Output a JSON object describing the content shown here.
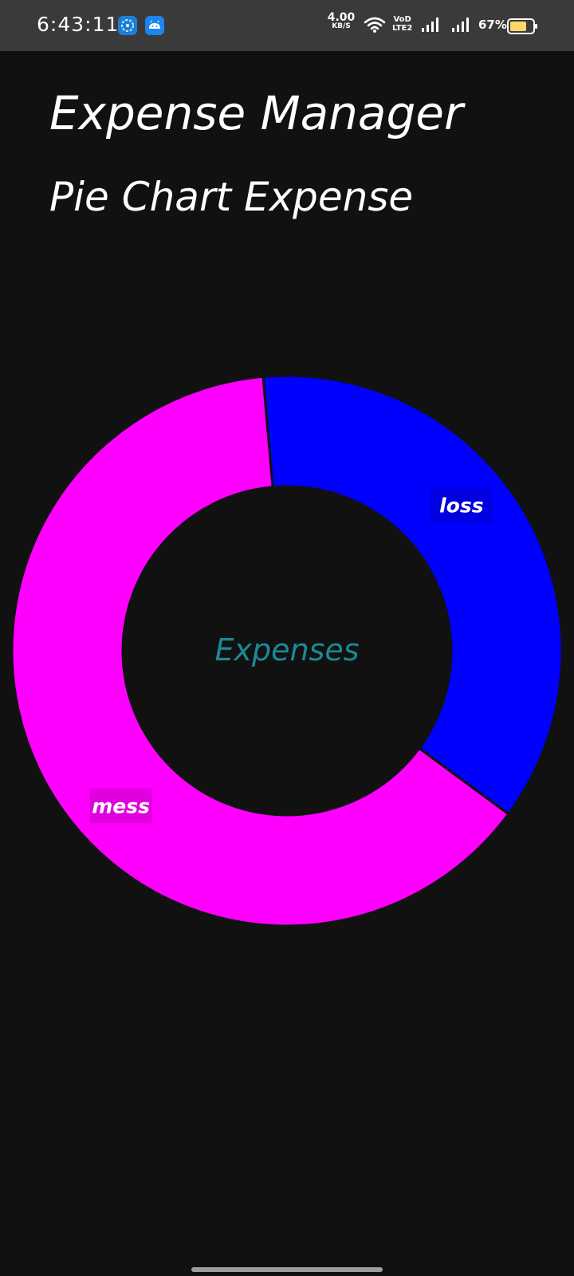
{
  "status_bar": {
    "time": "6:43:11",
    "net_speed_value": "4.00",
    "net_speed_unit": "KB/S",
    "volte_top": "VoD",
    "volte_bottom": "LTE2",
    "battery_percent": "67%",
    "notification_icons": [
      "app-notification-icon",
      "android-icon"
    ]
  },
  "header": {
    "app_title": "Expense Manager",
    "chart_heading": "Pie Chart Expense"
  },
  "chart_data": {
    "type": "pie",
    "style": "donut",
    "center_text": "Expenses",
    "center_text_color": "#1a8a96",
    "slices": [
      {
        "label": "loss",
        "value": 36.5,
        "color": "#0000ff"
      },
      {
        "label": "mess",
        "value": 63.5,
        "color": "#ff00ff"
      }
    ]
  },
  "colors": {
    "background": "#111111",
    "status_bar": "#3a3a3a",
    "text": "#ffffff"
  }
}
